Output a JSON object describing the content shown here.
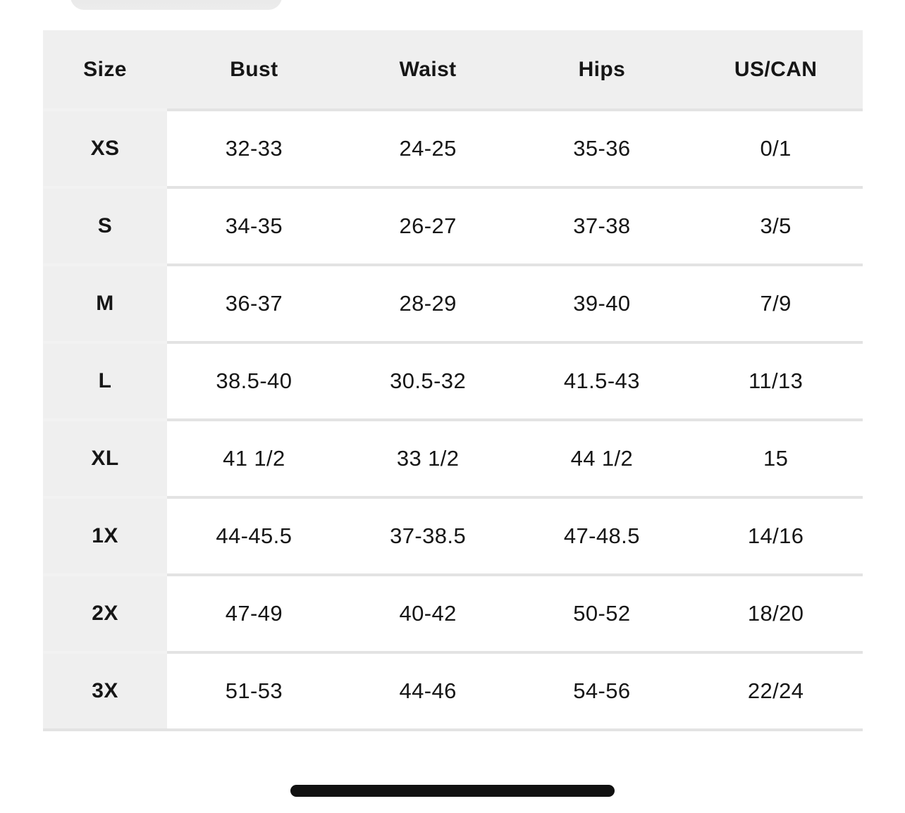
{
  "colors": {
    "page_bg": "#ffffff",
    "header_bg": "#efefef",
    "size_column_bg": "#efefef",
    "row_divider": "#e3e3e3",
    "row_divider_on_gray": "#f2f2f2",
    "text": "#161616",
    "home_indicator": "#111111",
    "sheet_handle": "#ececec"
  },
  "table": {
    "headers": [
      "Size",
      "Bust",
      "Waist",
      "Hips",
      "US/CAN"
    ],
    "rows": [
      [
        "XS",
        "32-33",
        "24-25",
        "35-36",
        "0/1"
      ],
      [
        "S",
        "34-35",
        "26-27",
        "37-38",
        "3/5"
      ],
      [
        "M",
        "36-37",
        "28-29",
        "39-40",
        "7/9"
      ],
      [
        "L",
        "38.5-40",
        "30.5-32",
        "41.5-43",
        "11/13"
      ],
      [
        "XL",
        "41 1/2",
        "33 1/2",
        "44 1/2",
        "15"
      ],
      [
        "1X",
        "44-45.5",
        "37-38.5",
        "47-48.5",
        "14/16"
      ],
      [
        "2X",
        "47-49",
        "40-42",
        "50-52",
        "18/20"
      ],
      [
        "3X",
        "51-53",
        "44-46",
        "54-56",
        "22/24"
      ]
    ]
  }
}
